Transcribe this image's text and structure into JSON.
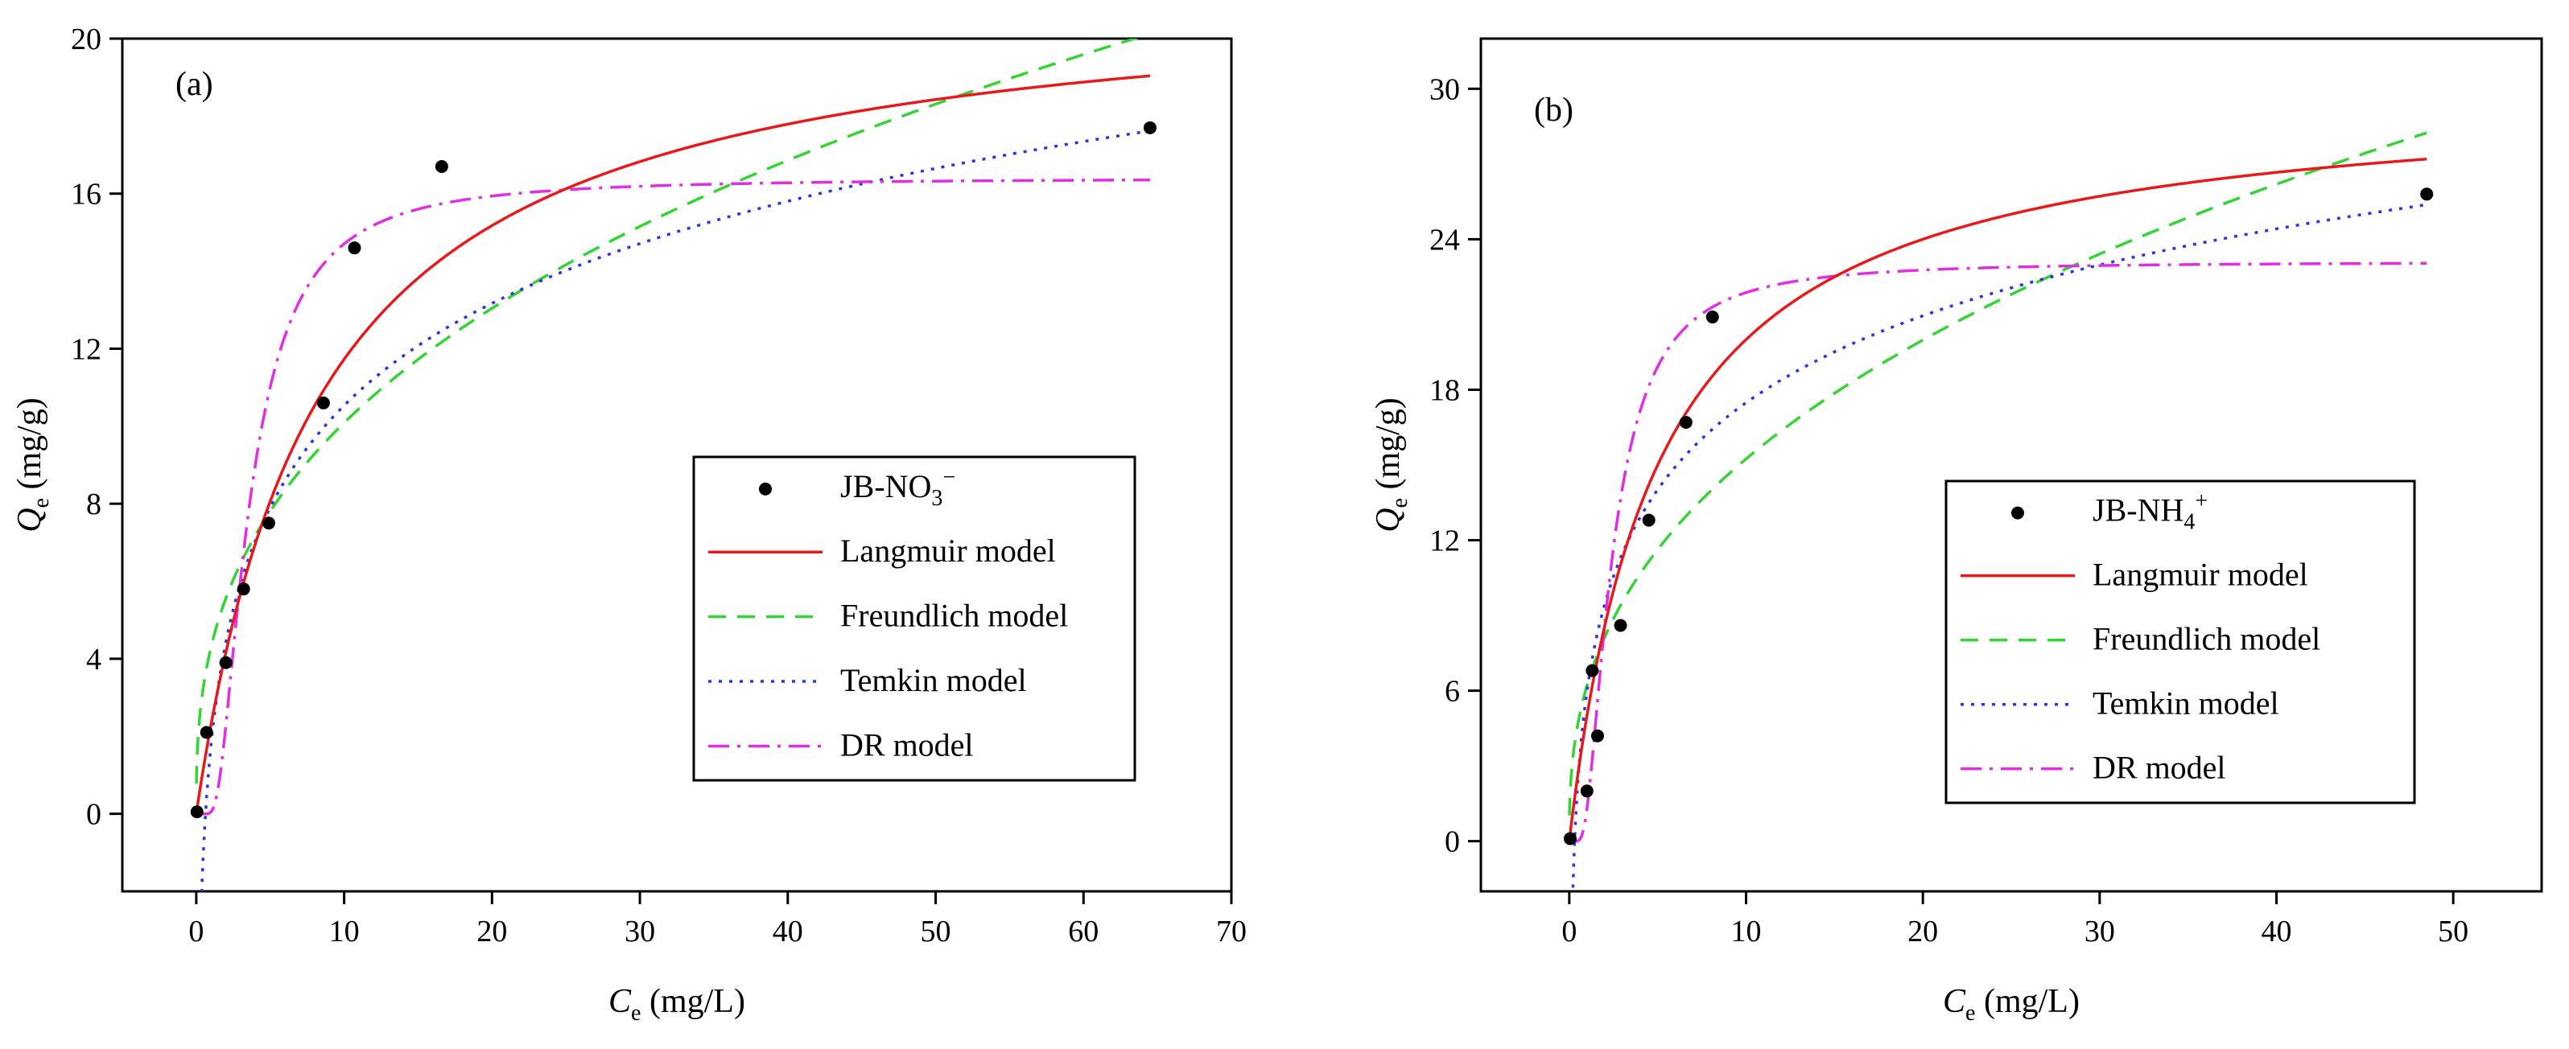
{
  "chart_data": [
    {
      "type": "scatter",
      "panel_label": "(a)",
      "xlabel": {
        "var": "C",
        "sub": "e",
        "unit": " (mg/L)"
      },
      "ylabel": {
        "var": "Q",
        "sub": "e",
        "unit": " (mg/g)"
      },
      "xlim": [
        -5,
        70
      ],
      "ylim": [
        -2,
        20
      ],
      "xticks": [
        0,
        10,
        20,
        30,
        40,
        50,
        60,
        70
      ],
      "yticks": [
        0,
        4,
        8,
        12,
        16,
        20
      ],
      "points": {
        "name": "JB-NO3-",
        "label": {
          "base": "JB-NO",
          "sub": "3",
          "sup": "−"
        },
        "x": [
          0.05,
          0.7,
          2.0,
          3.2,
          4.9,
          8.6,
          10.7,
          16.6,
          64.5
        ],
        "y": [
          0.05,
          2.1,
          3.9,
          5.8,
          7.5,
          10.6,
          14.6,
          16.7,
          17.7
        ]
      },
      "models": {
        "langmuir": {
          "label": "Langmuir model",
          "color": "#e8191a",
          "dash": "",
          "qmax": 21.5,
          "kl": 0.12,
          "xmax": 64.5
        },
        "freundlich": {
          "label": "Freundlich model",
          "color": "#35d435",
          "dash": "22 14",
          "kf": 4.3,
          "n": 2.7,
          "xmax": 64.5
        },
        "temkin": {
          "label": "Temkin model",
          "color": "#2a34e8",
          "dash": "4 9",
          "a": 1.6,
          "b": 3.8,
          "xmax": 64.5
        },
        "dr": {
          "label": "DR model",
          "color": "#e22ee2",
          "dash": "26 10 4 10",
          "qm": 16.4,
          "beta": 12,
          "xmax": 64.5
        }
      }
    },
    {
      "type": "scatter",
      "panel_label": "(b)",
      "xlabel": {
        "var": "C",
        "sub": "e",
        "unit": " (mg/L)"
      },
      "ylabel": {
        "var": "Q",
        "sub": "e",
        "unit": " (mg/g)"
      },
      "xlim": [
        -5,
        55
      ],
      "ylim": [
        -2,
        32
      ],
      "xticks": [
        0,
        10,
        20,
        30,
        40,
        50
      ],
      "yticks": [
        0,
        6,
        12,
        18,
        24,
        30
      ],
      "points": {
        "name": "JB-NH4+",
        "label": {
          "base": "JB-NH",
          "sub": "4",
          "sup": "+"
        },
        "x": [
          0.05,
          1.0,
          1.3,
          1.6,
          2.9,
          4.5,
          6.6,
          8.1,
          48.5
        ],
        "y": [
          0.1,
          2.0,
          6.8,
          4.2,
          8.6,
          12.8,
          16.7,
          20.9,
          25.8
        ]
      },
      "models": {
        "langmuir": {
          "label": "Langmuir model",
          "color": "#e8191a",
          "dash": "",
          "qmax": 30,
          "kl": 0.2,
          "xmax": 48.5
        },
        "freundlich": {
          "label": "Freundlich model",
          "color": "#35d435",
          "dash": "22 14",
          "kf": 6.2,
          "n": 2.56,
          "xmax": 48.5
        },
        "temkin": {
          "label": "Temkin model",
          "color": "#2a34e8",
          "dash": "4 9",
          "a": 3.3,
          "b": 5.0,
          "xmax": 48.5
        },
        "dr": {
          "label": "DR model",
          "color": "#e22ee2",
          "dash": "26 10 4 10",
          "qm": 23.1,
          "beta": 6,
          "xmax": 48.5
        }
      }
    }
  ]
}
